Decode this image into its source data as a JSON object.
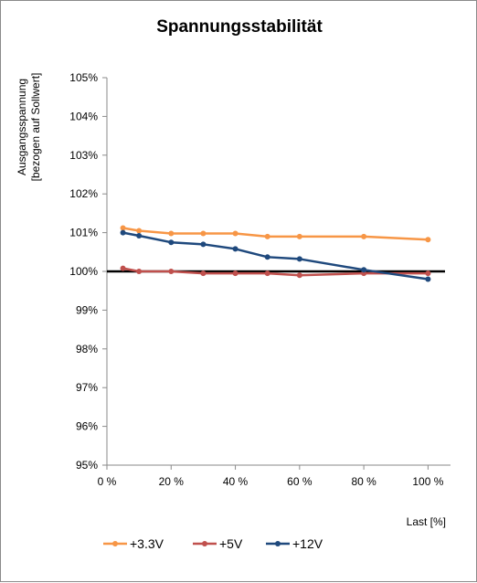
{
  "chart_data": {
    "type": "line",
    "title": "Spannungsstabilität",
    "xlabel": "Last [%]",
    "ylabel_lines": [
      "Ausgangsspannung",
      "[bezogen auf Sollwert]"
    ],
    "xlim": [
      0,
      107
    ],
    "ylim": [
      95,
      105
    ],
    "x_ticks": [
      0,
      20,
      40,
      60,
      80,
      100
    ],
    "x_tick_labels": [
      "0 %",
      "20 %",
      "40 %",
      "60 %",
      "80 %",
      "100 %"
    ],
    "y_ticks": [
      95,
      96,
      97,
      98,
      99,
      100,
      101,
      102,
      103,
      104,
      105
    ],
    "y_tick_labels": [
      "95%",
      "96%",
      "97%",
      "98%",
      "99%",
      "100%",
      "101%",
      "102%",
      "103%",
      "104%",
      "105%"
    ],
    "grid": false,
    "legend_position": "bottom",
    "reference_line": {
      "y": 100,
      "color": "#000000"
    },
    "series": [
      {
        "name": "+3.3V",
        "color": "#F79646",
        "x": [
          5,
          10,
          20,
          30,
          40,
          50,
          60,
          80,
          100
        ],
        "y": [
          101.12,
          101.05,
          100.98,
          100.98,
          100.98,
          100.9,
          100.9,
          100.9,
          100.82
        ]
      },
      {
        "name": "+5V",
        "color": "#C0504D",
        "x": [
          5,
          10,
          20,
          30,
          40,
          50,
          60,
          80,
          100
        ],
        "y": [
          100.08,
          100.0,
          100.0,
          99.95,
          99.95,
          99.95,
          99.9,
          99.95,
          99.95
        ]
      },
      {
        "name": "+12V",
        "color": "#1F497D",
        "x": [
          5,
          10,
          20,
          30,
          40,
          50,
          60,
          80,
          100
        ],
        "y": [
          101.0,
          100.92,
          100.75,
          100.7,
          100.58,
          100.37,
          100.32,
          100.04,
          99.8
        ]
      }
    ]
  }
}
